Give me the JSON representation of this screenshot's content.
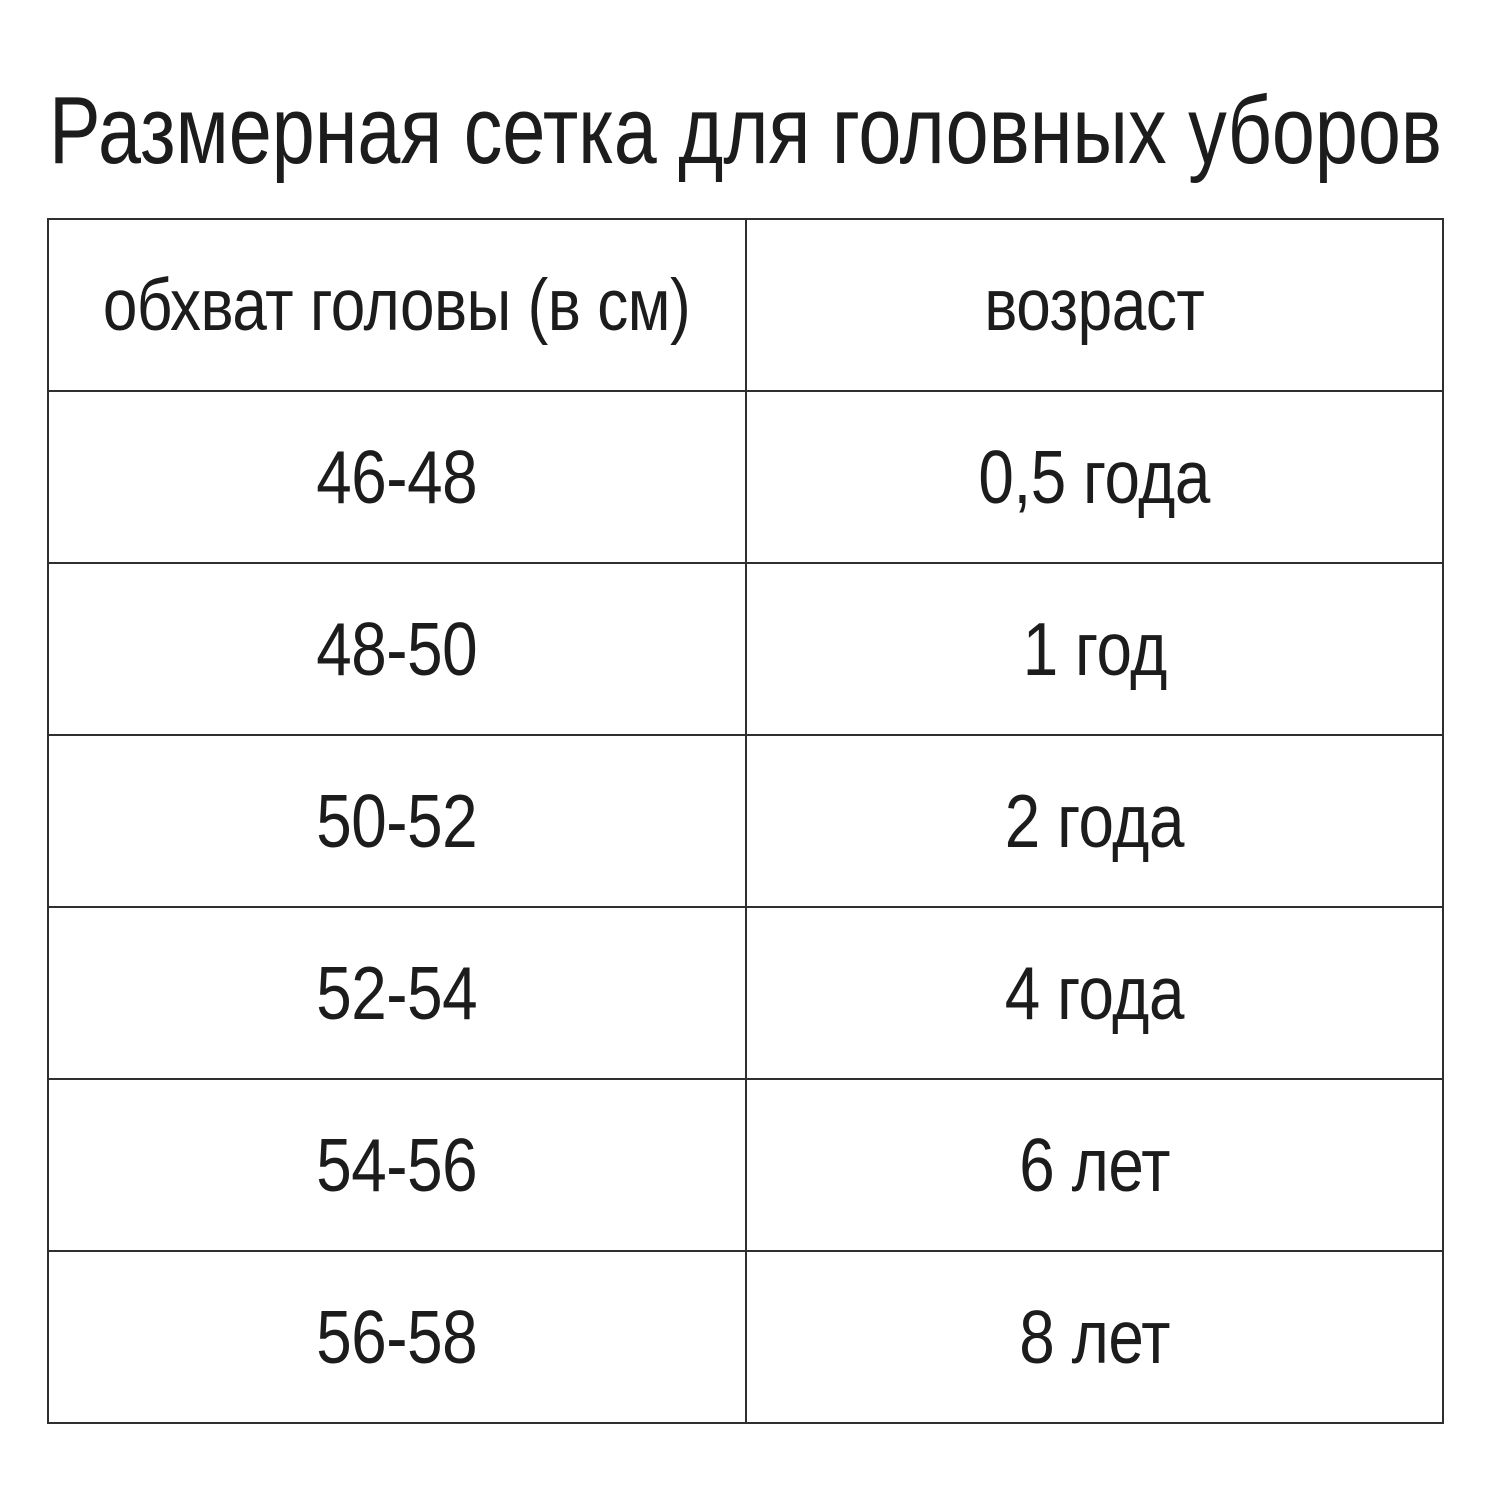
{
  "page": {
    "background_color": "#ffffff",
    "text_color": "#1c1c1c",
    "border_color": "#2f2f2f"
  },
  "title": "Размерная сетка для головных уборов",
  "table": {
    "columns": [
      "обхват головы (в см)",
      "возраст"
    ],
    "rows": [
      {
        "head_circumference_cm": "46-48",
        "age": "0,5 года"
      },
      {
        "head_circumference_cm": "48-50",
        "age": "1 год"
      },
      {
        "head_circumference_cm": "50-52",
        "age": "2 года"
      },
      {
        "head_circumference_cm": "52-54",
        "age": "4 года"
      },
      {
        "head_circumference_cm": "54-56",
        "age": "6 лет"
      },
      {
        "head_circumference_cm": "56-58",
        "age": "8 лет"
      }
    ]
  },
  "chart_data": {
    "type": "table",
    "title": "Размерная сетка для головных уборов",
    "columns": [
      "обхват головы (в см)",
      "возраст"
    ],
    "rows": [
      [
        "46-48",
        "0,5 года"
      ],
      [
        "48-50",
        "1 год"
      ],
      [
        "50-52",
        "2 года"
      ],
      [
        "52-54",
        "4 года"
      ],
      [
        "54-56",
        "6 лет"
      ],
      [
        "56-58",
        "8 лет"
      ]
    ],
    "layout": {
      "title_position": "top-left",
      "header_row": true,
      "grid_borders": true
    }
  }
}
